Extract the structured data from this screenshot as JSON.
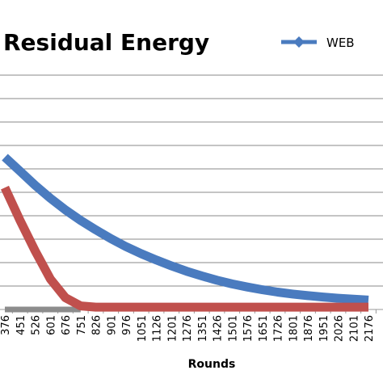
{
  "chart_data": {
    "type": "line",
    "title": "Residual Energy",
    "xlabel": "Rounds",
    "ylabel": "",
    "x": [
      376,
      451,
      526,
      601,
      676,
      751,
      826,
      901,
      976,
      1051,
      1126,
      1201,
      1276,
      1351,
      1426,
      1501,
      1576,
      1651,
      1726,
      1801,
      1876,
      1951,
      2026,
      2101,
      2176
    ],
    "categories": [
      "376",
      "451",
      "526",
      "601",
      "676",
      "751",
      "826",
      "901",
      "976",
      "1051",
      "1126",
      "1201",
      "1276",
      "1351",
      "1426",
      "1501",
      "1576",
      "1651",
      "1726",
      "1801",
      "1876",
      "1951",
      "2026",
      "2101",
      "2176"
    ],
    "grid": true,
    "legend_position": "top-right",
    "series": [
      {
        "name": "WEB",
        "color": "#4a7bbf",
        "marker": "diamond",
        "values": [
          6.5,
          5.9,
          5.3,
          4.75,
          4.25,
          3.8,
          3.4,
          3.02,
          2.68,
          2.38,
          2.11,
          1.86,
          1.63,
          1.43,
          1.25,
          1.09,
          0.96,
          0.84,
          0.74,
          0.66,
          0.59,
          0.53,
          0.48,
          0.44,
          0.4
        ]
      },
      {
        "color": "#c0504d",
        "values": [
          5.2,
          3.8,
          2.5,
          1.3,
          0.5,
          0.15,
          0.1,
          0.1,
          0.1,
          0.1,
          0.1,
          0.1,
          0.1,
          0.1,
          0.1,
          0.1,
          0.1,
          0.1,
          0.1,
          0.1,
          0.1,
          0.1,
          0.1,
          0.1,
          0.1
        ]
      },
      {
        "color": "#8c8c8c",
        "values": [
          0,
          0,
          0,
          0,
          0,
          0,
          null,
          null,
          null,
          null,
          null,
          null,
          null,
          null,
          null,
          null,
          null,
          null,
          null,
          null,
          null,
          null,
          null,
          null,
          null
        ]
      }
    ],
    "ylim": [
      0,
      10
    ]
  }
}
